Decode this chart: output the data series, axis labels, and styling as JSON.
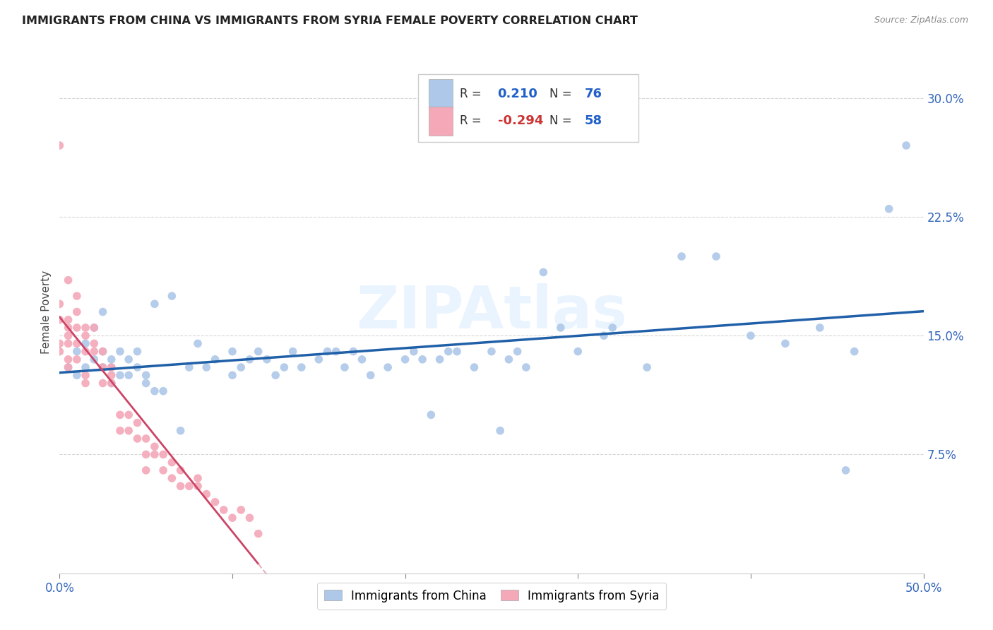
{
  "title": "IMMIGRANTS FROM CHINA VS IMMIGRANTS FROM SYRIA FEMALE POVERTY CORRELATION CHART",
  "source": "Source: ZipAtlas.com",
  "ylabel": "Female Poverty",
  "ytick_labels": [
    "7.5%",
    "15.0%",
    "22.5%",
    "30.0%"
  ],
  "ytick_values": [
    0.075,
    0.15,
    0.225,
    0.3
  ],
  "xlim": [
    0.0,
    0.5
  ],
  "ylim": [
    0.0,
    0.33
  ],
  "china_R": "0.210",
  "china_N": "76",
  "syria_R": "-0.294",
  "syria_N": "58",
  "china_color": "#adc8e8",
  "syria_color": "#f4a8b8",
  "china_line_color": "#2060a8",
  "syria_line_solid_color": "#cc4466",
  "syria_line_dash_color": "#e8b0c0",
  "watermark": "ZIPAtlas",
  "china_scatter_x": [
    0.005,
    0.01,
    0.01,
    0.015,
    0.015,
    0.02,
    0.02,
    0.025,
    0.025,
    0.025,
    0.03,
    0.03,
    0.03,
    0.035,
    0.035,
    0.04,
    0.04,
    0.045,
    0.045,
    0.05,
    0.05,
    0.055,
    0.055,
    0.06,
    0.065,
    0.07,
    0.075,
    0.08,
    0.085,
    0.09,
    0.1,
    0.1,
    0.105,
    0.11,
    0.115,
    0.12,
    0.125,
    0.13,
    0.135,
    0.14,
    0.15,
    0.155,
    0.16,
    0.165,
    0.17,
    0.175,
    0.18,
    0.19,
    0.2,
    0.205,
    0.21,
    0.215,
    0.22,
    0.225,
    0.23,
    0.24,
    0.25,
    0.255,
    0.26,
    0.265,
    0.27,
    0.28,
    0.29,
    0.3,
    0.315,
    0.32,
    0.34,
    0.36,
    0.38,
    0.4,
    0.42,
    0.44,
    0.46,
    0.455,
    0.48,
    0.49
  ],
  "china_scatter_y": [
    0.13,
    0.125,
    0.14,
    0.13,
    0.145,
    0.135,
    0.155,
    0.13,
    0.14,
    0.165,
    0.13,
    0.12,
    0.135,
    0.125,
    0.14,
    0.125,
    0.135,
    0.13,
    0.14,
    0.125,
    0.12,
    0.115,
    0.17,
    0.115,
    0.175,
    0.09,
    0.13,
    0.145,
    0.13,
    0.135,
    0.125,
    0.14,
    0.13,
    0.135,
    0.14,
    0.135,
    0.125,
    0.13,
    0.14,
    0.13,
    0.135,
    0.14,
    0.14,
    0.13,
    0.14,
    0.135,
    0.125,
    0.13,
    0.135,
    0.14,
    0.135,
    0.1,
    0.135,
    0.14,
    0.14,
    0.13,
    0.14,
    0.09,
    0.135,
    0.14,
    0.13,
    0.19,
    0.155,
    0.14,
    0.15,
    0.155,
    0.13,
    0.2,
    0.2,
    0.15,
    0.145,
    0.155,
    0.14,
    0.065,
    0.23,
    0.27
  ],
  "syria_scatter_x": [
    0.0,
    0.0,
    0.0,
    0.0,
    0.0,
    0.005,
    0.005,
    0.005,
    0.005,
    0.005,
    0.005,
    0.005,
    0.01,
    0.01,
    0.01,
    0.01,
    0.01,
    0.015,
    0.015,
    0.015,
    0.015,
    0.015,
    0.02,
    0.02,
    0.02,
    0.025,
    0.025,
    0.025,
    0.03,
    0.03,
    0.03,
    0.035,
    0.035,
    0.04,
    0.04,
    0.045,
    0.045,
    0.05,
    0.05,
    0.05,
    0.055,
    0.055,
    0.06,
    0.06,
    0.065,
    0.065,
    0.07,
    0.07,
    0.075,
    0.08,
    0.08,
    0.085,
    0.09,
    0.095,
    0.1,
    0.105,
    0.11,
    0.115
  ],
  "syria_scatter_y": [
    0.27,
    0.17,
    0.16,
    0.145,
    0.14,
    0.185,
    0.16,
    0.155,
    0.15,
    0.145,
    0.135,
    0.13,
    0.175,
    0.165,
    0.155,
    0.145,
    0.135,
    0.155,
    0.15,
    0.14,
    0.125,
    0.12,
    0.155,
    0.145,
    0.14,
    0.14,
    0.13,
    0.12,
    0.13,
    0.125,
    0.12,
    0.1,
    0.09,
    0.1,
    0.09,
    0.095,
    0.085,
    0.085,
    0.075,
    0.065,
    0.08,
    0.075,
    0.075,
    0.065,
    0.07,
    0.06,
    0.065,
    0.055,
    0.055,
    0.06,
    0.055,
    0.05,
    0.045,
    0.04,
    0.035,
    0.04,
    0.035,
    0.025
  ]
}
